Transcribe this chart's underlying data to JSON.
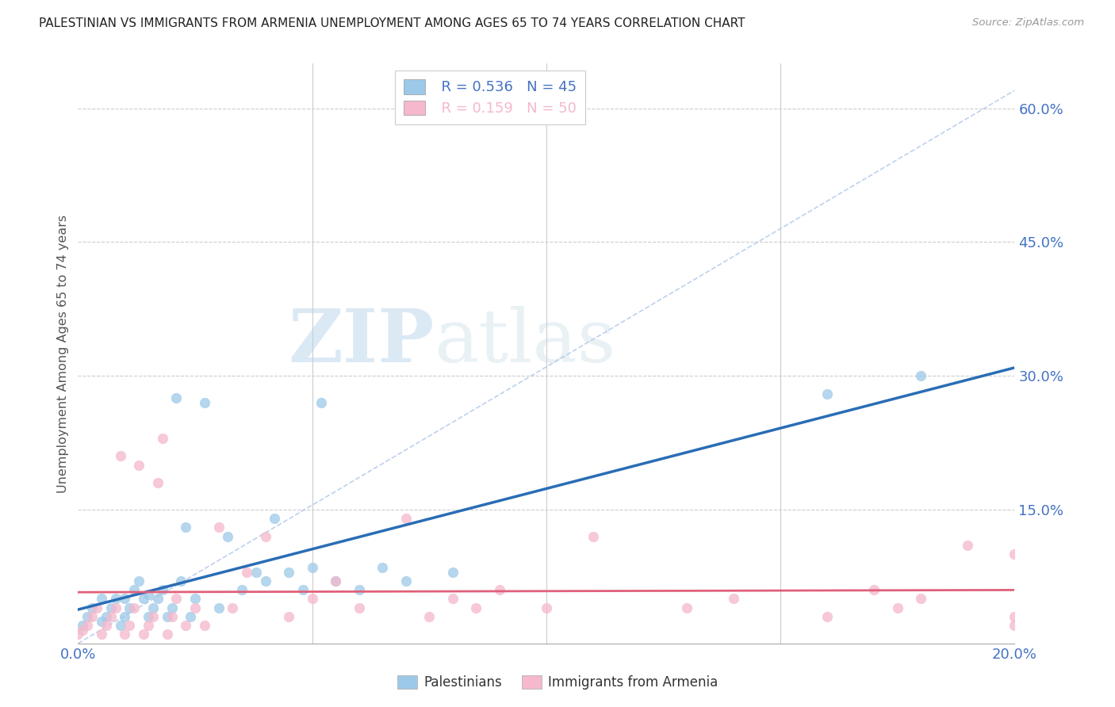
{
  "title": "PALESTINIAN VS IMMIGRANTS FROM ARMENIA UNEMPLOYMENT AMONG AGES 65 TO 74 YEARS CORRELATION CHART",
  "source": "Source: ZipAtlas.com",
  "ylabel": "Unemployment Among Ages 65 to 74 years",
  "xlim": [
    0.0,
    0.2
  ],
  "ylim": [
    0.0,
    0.65
  ],
  "yticks_right": [
    0.0,
    0.15,
    0.3,
    0.45,
    0.6
  ],
  "ytick_labels_right": [
    "",
    "15.0%",
    "30.0%",
    "45.0%",
    "60.0%"
  ],
  "legend_r1": "R = 0.536",
  "legend_n1": "N = 45",
  "legend_r2": "R = 0.159",
  "legend_n2": "N = 50",
  "color_palestinians": "#9dc9e8",
  "color_armenia": "#f5b8cc",
  "color_line_palestinians": "#2a6db5",
  "color_line_armenia": "#e0607a",
  "color_ticks": "#4472c4",
  "background_color": "#ffffff",
  "watermark_zip": "ZIP",
  "watermark_atlas": "atlas",
  "palestinians_x": [
    0.001,
    0.002,
    0.003,
    0.005,
    0.005,
    0.006,
    0.007,
    0.008,
    0.009,
    0.01,
    0.01,
    0.011,
    0.012,
    0.013,
    0.014,
    0.015,
    0.015,
    0.016,
    0.017,
    0.018,
    0.019,
    0.02,
    0.021,
    0.022,
    0.023,
    0.024,
    0.025,
    0.027,
    0.03,
    0.032,
    0.035,
    0.038,
    0.04,
    0.042,
    0.045,
    0.048,
    0.05,
    0.052,
    0.055,
    0.06,
    0.065,
    0.07,
    0.08,
    0.16,
    0.18
  ],
  "palestinians_y": [
    0.02,
    0.03,
    0.04,
    0.025,
    0.05,
    0.03,
    0.04,
    0.05,
    0.02,
    0.03,
    0.05,
    0.04,
    0.06,
    0.07,
    0.05,
    0.03,
    0.055,
    0.04,
    0.05,
    0.06,
    0.03,
    0.04,
    0.275,
    0.07,
    0.13,
    0.03,
    0.05,
    0.27,
    0.04,
    0.12,
    0.06,
    0.08,
    0.07,
    0.14,
    0.08,
    0.06,
    0.085,
    0.27,
    0.07,
    0.06,
    0.085,
    0.07,
    0.08,
    0.28,
    0.3
  ],
  "armenia_x": [
    0.0,
    0.001,
    0.002,
    0.003,
    0.004,
    0.005,
    0.006,
    0.007,
    0.008,
    0.009,
    0.01,
    0.011,
    0.012,
    0.013,
    0.014,
    0.015,
    0.016,
    0.017,
    0.018,
    0.019,
    0.02,
    0.021,
    0.023,
    0.025,
    0.027,
    0.03,
    0.033,
    0.036,
    0.04,
    0.045,
    0.05,
    0.055,
    0.06,
    0.07,
    0.075,
    0.08,
    0.085,
    0.09,
    0.1,
    0.11,
    0.13,
    0.14,
    0.16,
    0.17,
    0.175,
    0.18,
    0.19,
    0.2,
    0.2,
    0.2
  ],
  "armenia_y": [
    0.01,
    0.015,
    0.02,
    0.03,
    0.04,
    0.01,
    0.02,
    0.03,
    0.04,
    0.21,
    0.01,
    0.02,
    0.04,
    0.2,
    0.01,
    0.02,
    0.03,
    0.18,
    0.23,
    0.01,
    0.03,
    0.05,
    0.02,
    0.04,
    0.02,
    0.13,
    0.04,
    0.08,
    0.12,
    0.03,
    0.05,
    0.07,
    0.04,
    0.14,
    0.03,
    0.05,
    0.04,
    0.06,
    0.04,
    0.12,
    0.04,
    0.05,
    0.03,
    0.06,
    0.04,
    0.05,
    0.11,
    0.1,
    0.03,
    0.02
  ]
}
